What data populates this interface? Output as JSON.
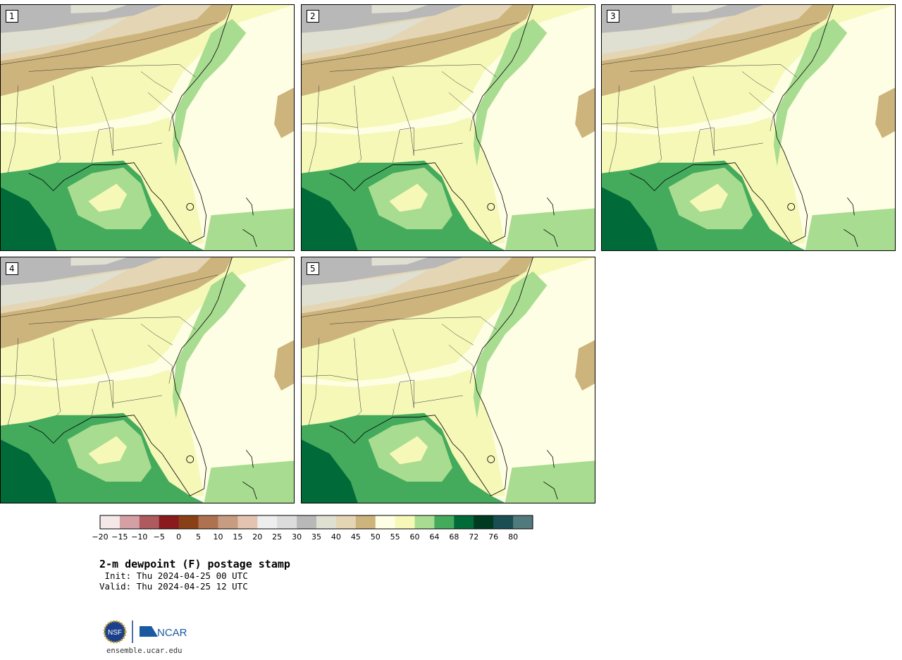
{
  "panels": [
    {
      "id": 1,
      "label": "1"
    },
    {
      "id": 2,
      "label": "2"
    },
    {
      "id": 3,
      "label": "3"
    },
    {
      "id": 4,
      "label": "4"
    },
    {
      "id": 5,
      "label": "5"
    }
  ],
  "colorbar": {
    "ticks": [
      "−20",
      "−15",
      "−10",
      "−5",
      "0",
      "5",
      "10",
      "15",
      "20",
      "25",
      "30",
      "35",
      "40",
      "45",
      "50",
      "55",
      "60",
      "64",
      "68",
      "72",
      "76",
      "80"
    ],
    "colors": [
      "#f4e8e8",
      "#d4a0a4",
      "#ae5a5e",
      "#8a1a1e",
      "#8a4016",
      "#ae7250",
      "#c89c80",
      "#e4c4b0",
      "#eeeeee",
      "#dcdcdc",
      "#b8b8b8",
      "#e0e0d2",
      "#e4d6b4",
      "#cdb47c",
      "#fefee4",
      "#f6f8b8",
      "#a8dc90",
      "#44aa5c",
      "#006a38",
      "#003a20",
      "#1a4e52",
      "#507a7c"
    ]
  },
  "title": "2-m dewpoint (F) postage stamp",
  "init": " Init: Thu 2024-04-25 00 UTC",
  "valid": "Valid: Thu 2024-04-25 12 UTC",
  "logo": {
    "nsf": "NSF",
    "ncar": "NCAR"
  },
  "url": "ensemble.ucar.edu"
}
